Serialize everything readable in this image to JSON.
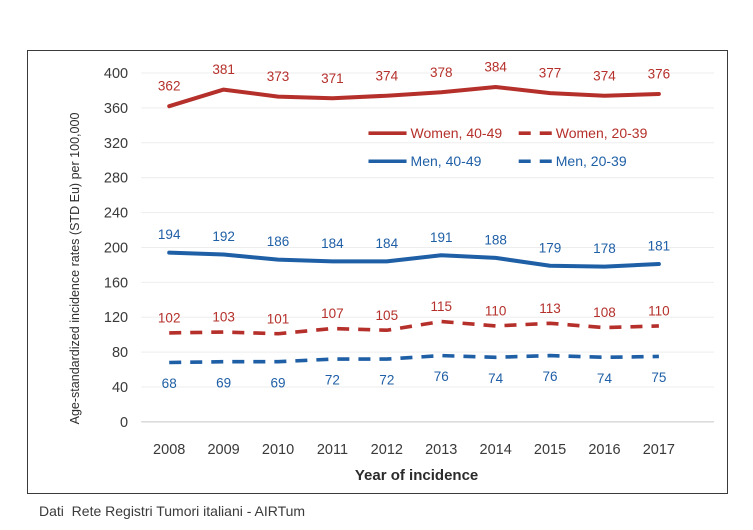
{
  "chart_data": {
    "type": "line",
    "x": [
      2008,
      2009,
      2010,
      2011,
      2012,
      2013,
      2014,
      2015,
      2016,
      2017
    ],
    "series": [
      {
        "name": "Women, 40-49",
        "color": "#B5302B",
        "style": "solid",
        "label_position": "above",
        "values": [
          362,
          381,
          373,
          371,
          374,
          378,
          384,
          377,
          374,
          376
        ]
      },
      {
        "name": "Women, 20-39",
        "color": "#B5302B",
        "style": "dashed",
        "label_position": "above",
        "values": [
          102,
          103,
          101,
          107,
          105,
          115,
          110,
          113,
          108,
          110
        ]
      },
      {
        "name": "Men, 40-49",
        "color": "#1F5FA6",
        "style": "solid",
        "label_position": "above",
        "values": [
          194,
          192,
          186,
          184,
          184,
          191,
          188,
          179,
          178,
          181
        ]
      },
      {
        "name": "Men, 20-39",
        "color": "#1F5FA6",
        "style": "dashed",
        "label_position": "below",
        "values": [
          68,
          69,
          69,
          72,
          72,
          76,
          74,
          76,
          74,
          75
        ]
      }
    ],
    "xlabel": "Year of incidence",
    "ylabel": "Age-standardized incidence rates (STD Eu) per 100,000",
    "ylim": [
      0,
      400
    ],
    "ytick_step": 40,
    "grid": true,
    "legend_position": "inside-upper-right",
    "legend_rows": [
      [
        "Women, 40-49",
        "Women, 20-39"
      ],
      [
        "Men, 40-49",
        "Men, 20-39"
      ]
    ]
  },
  "footer": {
    "source_text": "Dati  Rete Registri Tumori italiani - AIRTum"
  },
  "colors": {
    "women_series": "#B5302B",
    "men_series": "#1F5FA6",
    "axis_text": "#3a3a3a",
    "grid_line": "#ededed",
    "zero_line": "#d6d6d6",
    "frame_border": "#3a3a3a"
  }
}
